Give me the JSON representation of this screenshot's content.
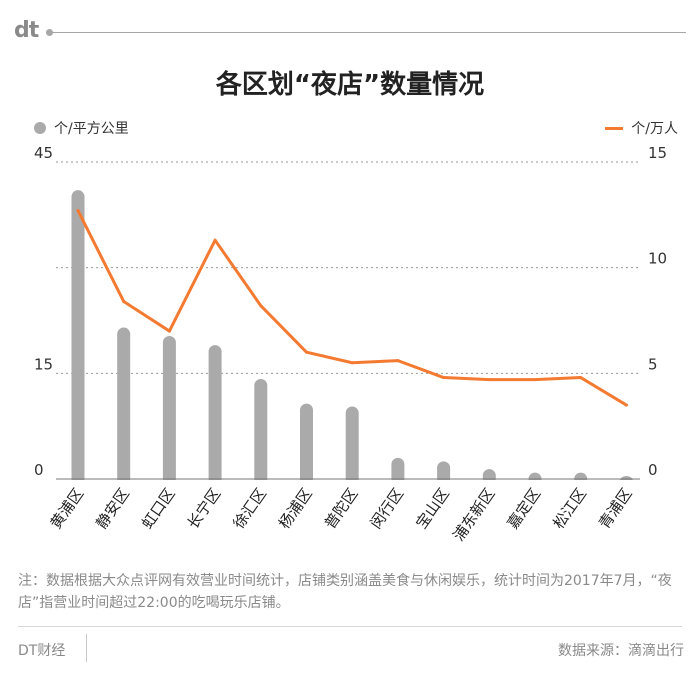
{
  "header": {
    "logo_text": "dt"
  },
  "chart_data": {
    "type": "bar",
    "title": "各区划“夜店”数量情况",
    "categories": [
      "黄浦区",
      "静安区",
      "虹口区",
      "长宁区",
      "徐汇区",
      "杨浦区",
      "普陀区",
      "闵行区",
      "宝山区",
      "浦东新区",
      "嘉定区",
      "松江区",
      "青浦区"
    ],
    "series": [
      {
        "name": "个/平方公里",
        "type": "bar",
        "axis": "left",
        "color": "#aaaaaa",
        "values": [
          41,
          21.5,
          20.3,
          19,
          14.2,
          10.7,
          10.3,
          3,
          2.5,
          1.4,
          0.9,
          0.9,
          0.2
        ]
      },
      {
        "name": "个/万人",
        "type": "line",
        "axis": "right",
        "color": "#f47a31",
        "values": [
          12.7,
          8.4,
          7.0,
          11.3,
          8.2,
          6.0,
          5.5,
          5.6,
          4.8,
          4.7,
          4.7,
          4.8,
          3.5
        ]
      }
    ],
    "left_axis": {
      "ylim": [
        0,
        45
      ],
      "ticks": [
        "0",
        "15",
        "45"
      ],
      "tick_values": [
        0,
        15,
        45
      ]
    },
    "right_axis": {
      "ylim": [
        0,
        15
      ],
      "ticks": [
        "0",
        "5",
        "10",
        "15"
      ],
      "tick_values": [
        0,
        5,
        10,
        15
      ]
    },
    "legend": {
      "left_label": "个/平方公里",
      "right_label": "个/万人"
    }
  },
  "note": "注：数据根据大众点评网有效营业时间统计，店铺类别涵盖美食与休闲娱乐，统计时间为2017年7月，“夜店”指营业时间超过22:00的吃喝玩乐店铺。",
  "footer": {
    "brand": "DT财经",
    "source": "数据来源：滴滴出行"
  }
}
